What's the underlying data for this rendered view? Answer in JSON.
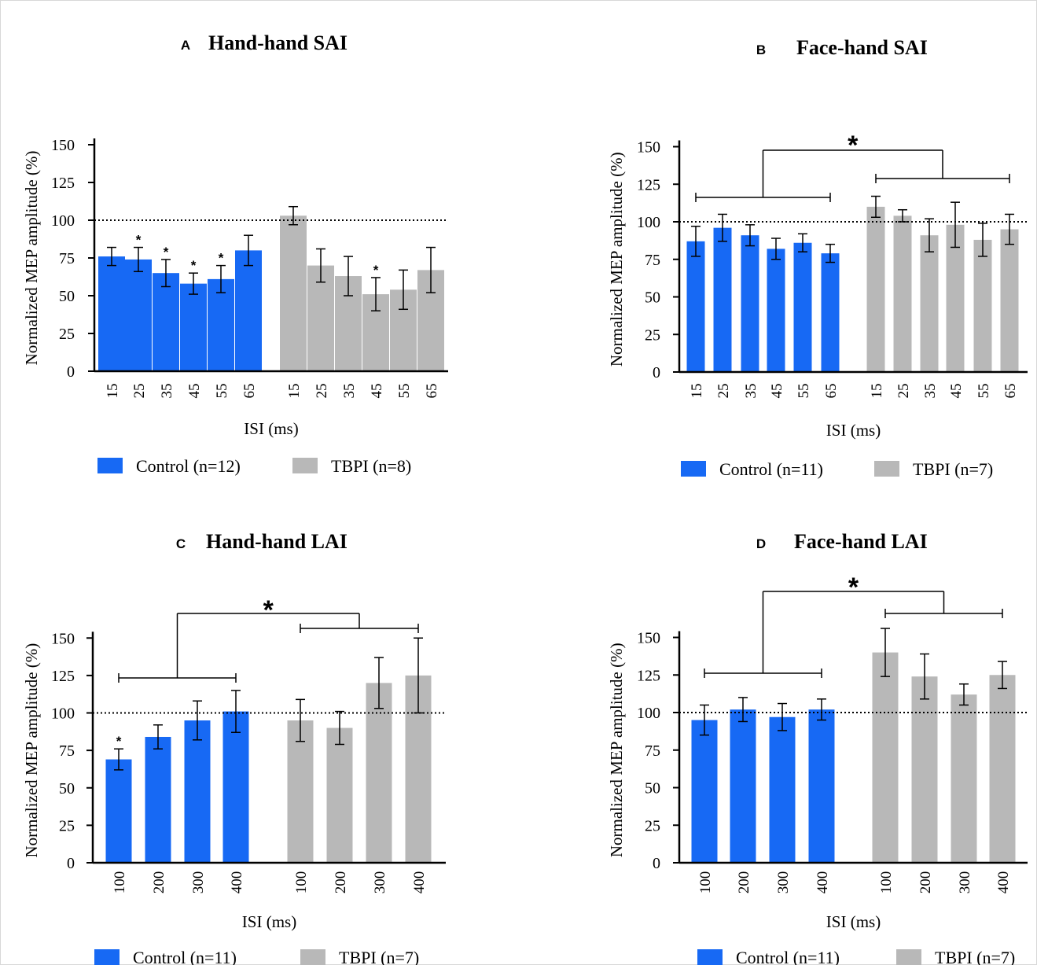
{
  "colors": {
    "control": "#1769f4",
    "tbpi": "#b8b8b8",
    "axis": "#000000"
  },
  "chart_data": [
    {
      "panel_letter": "A",
      "title": "Hand-hand SAI",
      "type": "bar",
      "xlabel": "ISI (ms)",
      "ylabel": "Normalized MEP amplitude (%)",
      "ylim": [
        0,
        150
      ],
      "yticks": [
        0,
        25,
        50,
        75,
        100,
        125,
        150
      ],
      "reference_line": 100,
      "series": [
        {
          "name": "Control (n=12)",
          "categories": [
            "15",
            "25",
            "35",
            "45",
            "55",
            "65"
          ],
          "values": [
            76,
            74,
            65,
            58,
            61,
            80
          ],
          "errors": [
            6,
            8,
            9,
            7,
            9,
            10
          ],
          "significance": [
            "",
            "*",
            "*",
            "*",
            "*",
            ""
          ]
        },
        {
          "name": "TBPI (n=8)",
          "categories": [
            "15",
            "25",
            "35",
            "45",
            "55",
            "65"
          ],
          "values": [
            103,
            70,
            63,
            51,
            54,
            67
          ],
          "errors": [
            6,
            11,
            13,
            11,
            13,
            15
          ],
          "significance": [
            "",
            "",
            "",
            "*",
            "",
            ""
          ]
        }
      ],
      "group_comparison": null
    },
    {
      "panel_letter": "B",
      "title": "Face-hand SAI",
      "type": "bar",
      "xlabel": "ISI (ms)",
      "ylabel": "Normalized MEP amplitude (%)",
      "ylim": [
        0,
        150
      ],
      "yticks": [
        0,
        25,
        50,
        75,
        100,
        125,
        150
      ],
      "reference_line": 100,
      "series": [
        {
          "name": "Control (n=11)",
          "categories": [
            "15",
            "25",
            "35",
            "45",
            "55",
            "65"
          ],
          "values": [
            87,
            96,
            91,
            82,
            86,
            79
          ],
          "errors": [
            10,
            9,
            7,
            7,
            6,
            6
          ],
          "significance": [
            "",
            "",
            "",
            "",
            "",
            ""
          ]
        },
        {
          "name": "TBPI (n=7)",
          "categories": [
            "15",
            "25",
            "35",
            "45",
            "55",
            "65"
          ],
          "values": [
            110,
            104,
            91,
            98,
            88,
            95
          ],
          "errors": [
            7,
            4,
            11,
            15,
            11,
            10
          ],
          "significance": [
            "",
            "",
            "",
            "",
            "",
            ""
          ]
        }
      ],
      "group_comparison": "*"
    },
    {
      "panel_letter": "C",
      "title": "Hand-hand LAI",
      "type": "bar",
      "xlabel": "ISI (ms)",
      "ylabel": "Normalized MEP amplitude (%)",
      "ylim": [
        0,
        150
      ],
      "yticks": [
        0,
        25,
        50,
        75,
        100,
        125,
        150
      ],
      "reference_line": 100,
      "series": [
        {
          "name": "Control (n=11)",
          "categories": [
            "100",
            "200",
            "300",
            "400"
          ],
          "values": [
            69,
            84,
            95,
            101
          ],
          "errors": [
            7,
            8,
            13,
            14
          ],
          "significance": [
            "*",
            "",
            "",
            ""
          ]
        },
        {
          "name": "TBPI (n=7)",
          "categories": [
            "100",
            "200",
            "300",
            "400"
          ],
          "values": [
            95,
            90,
            120,
            125
          ],
          "errors": [
            14,
            11,
            17,
            25
          ],
          "significance": [
            "",
            "",
            "",
            ""
          ]
        }
      ],
      "group_comparison": "*"
    },
    {
      "panel_letter": "D",
      "title": "Face-hand LAI",
      "type": "bar",
      "xlabel": "ISI (ms)",
      "ylabel": "Normalized MEP amplitude (%)",
      "ylim": [
        0,
        150
      ],
      "yticks": [
        0,
        25,
        50,
        75,
        100,
        125,
        150
      ],
      "reference_line": 100,
      "series": [
        {
          "name": "Control (n=11)",
          "categories": [
            "100",
            "200",
            "300",
            "400"
          ],
          "values": [
            95,
            102,
            97,
            102
          ],
          "errors": [
            10,
            8,
            9,
            7
          ],
          "significance": [
            "",
            "",
            "",
            ""
          ]
        },
        {
          "name": "TBPI (n=7)",
          "categories": [
            "100",
            "200",
            "300",
            "400"
          ],
          "values": [
            140,
            124,
            112,
            125
          ],
          "errors": [
            16,
            15,
            7,
            9
          ],
          "significance": [
            "",
            "",
            "",
            ""
          ]
        }
      ],
      "group_comparison": "*"
    }
  ]
}
